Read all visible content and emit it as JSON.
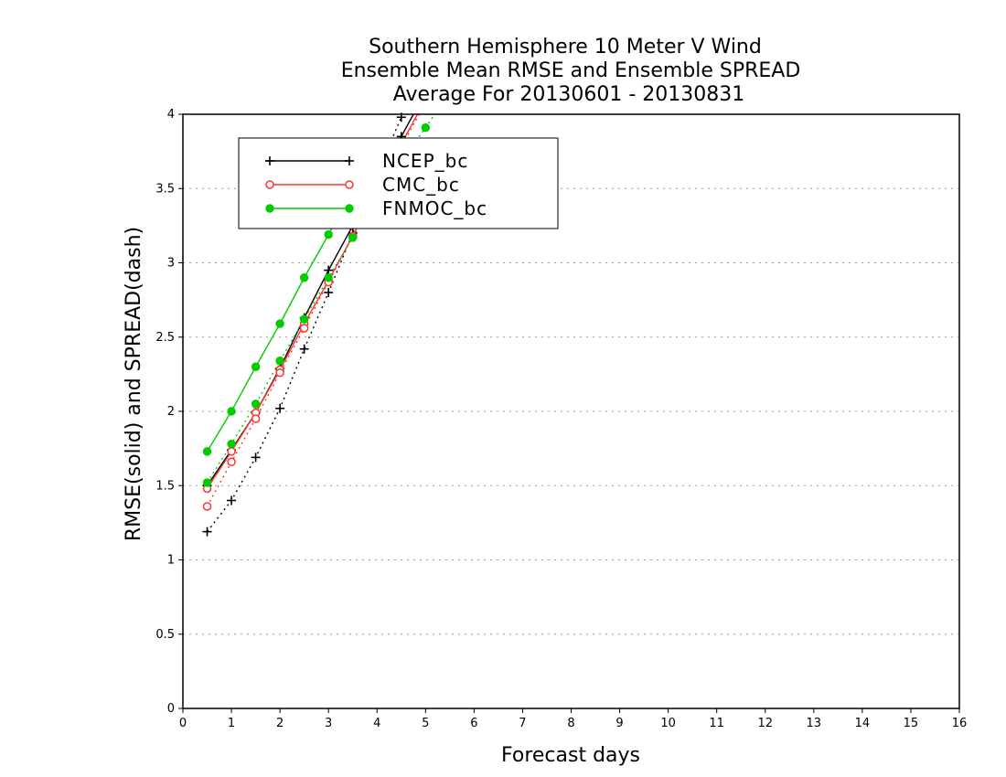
{
  "chart_data": {
    "type": "line",
    "title": [
      "Southern Hemisphere 10 Meter V Wind",
      "Ensemble Mean RMSE and Ensemble SPREAD",
      "Average For 20130601 - 20130831"
    ],
    "xlabel": "Forecast days",
    "ylabel": "RMSE(solid) and SPREAD(dash)",
    "xlim": [
      0,
      16
    ],
    "ylim": [
      0,
      4
    ],
    "xticks": [
      "0",
      "1",
      "2",
      "3",
      "4",
      "5",
      "6",
      "7",
      "8",
      "9",
      "10",
      "11",
      "12",
      "13",
      "14",
      "15",
      "16"
    ],
    "yticks": [
      "0",
      "0.5",
      "1",
      "1.5",
      "2",
      "2.5",
      "3",
      "3.5",
      "4"
    ],
    "grid": "horizontal dotted",
    "legend_position": "top-left",
    "series": [
      {
        "name": "NCEP_bc",
        "color": "#000000",
        "marker": "plus",
        "rmse": {
          "x": [
            0.5,
            1.0,
            1.5,
            2.0,
            2.5,
            3.0,
            3.5,
            4.0,
            4.5,
            5.0
          ],
          "y": [
            1.5,
            1.74,
            1.99,
            2.29,
            2.63,
            2.95,
            3.25,
            3.55,
            3.85,
            4.15
          ]
        },
        "spread": {
          "x": [
            0.5,
            1.0,
            1.5,
            2.0,
            2.5,
            3.0,
            3.5,
            4.0,
            4.5
          ],
          "y": [
            1.19,
            1.4,
            1.69,
            2.02,
            2.42,
            2.8,
            3.2,
            3.6,
            3.98
          ]
        }
      },
      {
        "name": "CMC_bc",
        "color": "#ff3333",
        "marker": "circle-open",
        "rmse": {
          "x": [
            0.5,
            1.0,
            1.5,
            2.0,
            2.5,
            3.0,
            3.5,
            4.0,
            4.5,
            5.0
          ],
          "y": [
            1.48,
            1.73,
            1.99,
            2.28,
            2.59,
            2.88,
            3.18,
            3.5,
            3.8,
            4.1
          ]
        },
        "spread": {
          "x": [
            0.5,
            1.0,
            1.5,
            2.0,
            2.5,
            3.0,
            3.5,
            4.0,
            4.5,
            5.0
          ],
          "y": [
            1.36,
            1.66,
            1.95,
            2.26,
            2.56,
            2.87,
            3.18,
            3.48,
            3.78,
            4.08
          ]
        }
      },
      {
        "name": "FNMOC_bc",
        "color": "#00cc00",
        "marker": "circle-filled",
        "rmse": {
          "x": [
            0.5,
            1.0,
            1.5,
            2.0,
            2.5,
            3.0,
            3.5,
            4.0
          ],
          "y": [
            1.73,
            2.0,
            2.3,
            2.59,
            2.9,
            3.19,
            3.49,
            3.8
          ]
        },
        "spread": {
          "x": [
            0.5,
            1.0,
            1.5,
            2.0,
            2.5,
            3.0,
            3.5,
            4.0,
            4.5,
            5.0,
            5.5
          ],
          "y": [
            1.52,
            1.78,
            2.05,
            2.34,
            2.62,
            2.9,
            3.17,
            3.45,
            3.68,
            3.91,
            4.15
          ]
        }
      }
    ]
  }
}
